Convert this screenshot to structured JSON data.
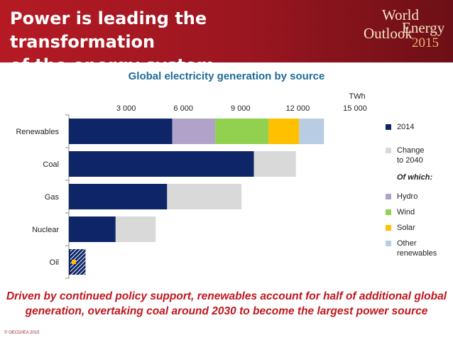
{
  "header": {
    "title": "Power is leading the transformation\nof the energy system",
    "logo": {
      "line1": "World",
      "line2a": "Outlook",
      "line2b": "Energy",
      "year": "2015"
    }
  },
  "caption": "Driven by continued policy support, renewables account for half of additional global\ngeneration, overtaking coal around 2030 to become the largest power source",
  "copyright": "© OECD/IEA 2015",
  "colors": {
    "2014": "#0e2668",
    "change": "#d9d9d9",
    "hydro": "#b0a2c9",
    "wind": "#92d050",
    "solar": "#ffc000",
    "other": "#b8cce4",
    "title": "#1e6b96",
    "header": "#b51a24",
    "caption": "#c0171f"
  },
  "legend": {
    "items": [
      {
        "key": "2014",
        "label": "2014",
        "color": "#0e2668"
      },
      {
        "key": "change",
        "label": "Change\nto 2040",
        "color": "#d9d9d9"
      },
      {
        "key": "hydro",
        "label": "Hydro",
        "color": "#b0a2c9"
      },
      {
        "key": "wind",
        "label": "Wind",
        "color": "#92d050"
      },
      {
        "key": "solar",
        "label": "Solar",
        "color": "#ffc000"
      },
      {
        "key": "other",
        "label": "Other\nrenewables",
        "color": "#b8cce4"
      }
    ],
    "subhead": "Of which:"
  },
  "chart_data": {
    "type": "bar",
    "orientation": "horizontal",
    "stacked": true,
    "title": "Global electricity generation by source",
    "unit": "TWh",
    "xlim": [
      0,
      15000
    ],
    "ticks": [
      3000,
      6000,
      9000,
      12000,
      15000
    ],
    "tick_labels": [
      "3 000",
      "6 000",
      "9 000",
      "12 000",
      "15 000"
    ],
    "grid": false,
    "legend_position": "right",
    "categories": [
      "Renewables",
      "Coal",
      "Gas",
      "Nuclear",
      "Oil"
    ],
    "series": [
      {
        "name": "2014",
        "color": "#0e2668",
        "values": [
          5420,
          9700,
          5150,
          2450,
          500
        ]
      },
      {
        "name": "Change to 2040",
        "color": "#d9d9d9",
        "values": [
          0,
          2200,
          3900,
          2100,
          0
        ]
      },
      {
        "name": "Hydro",
        "color": "#b0a2c9",
        "values": [
          2250,
          0,
          0,
          0,
          0
        ]
      },
      {
        "name": "Wind",
        "color": "#92d050",
        "values": [
          2800,
          0,
          0,
          0,
          0
        ]
      },
      {
        "name": "Solar",
        "color": "#ffc000",
        "values": [
          1600,
          0,
          0,
          0,
          0
        ]
      },
      {
        "name": "Other renewables",
        "color": "#b8cce4",
        "values": [
          1300,
          0,
          0,
          0,
          0
        ]
      }
    ],
    "oil_change_to_2040": -500
  }
}
